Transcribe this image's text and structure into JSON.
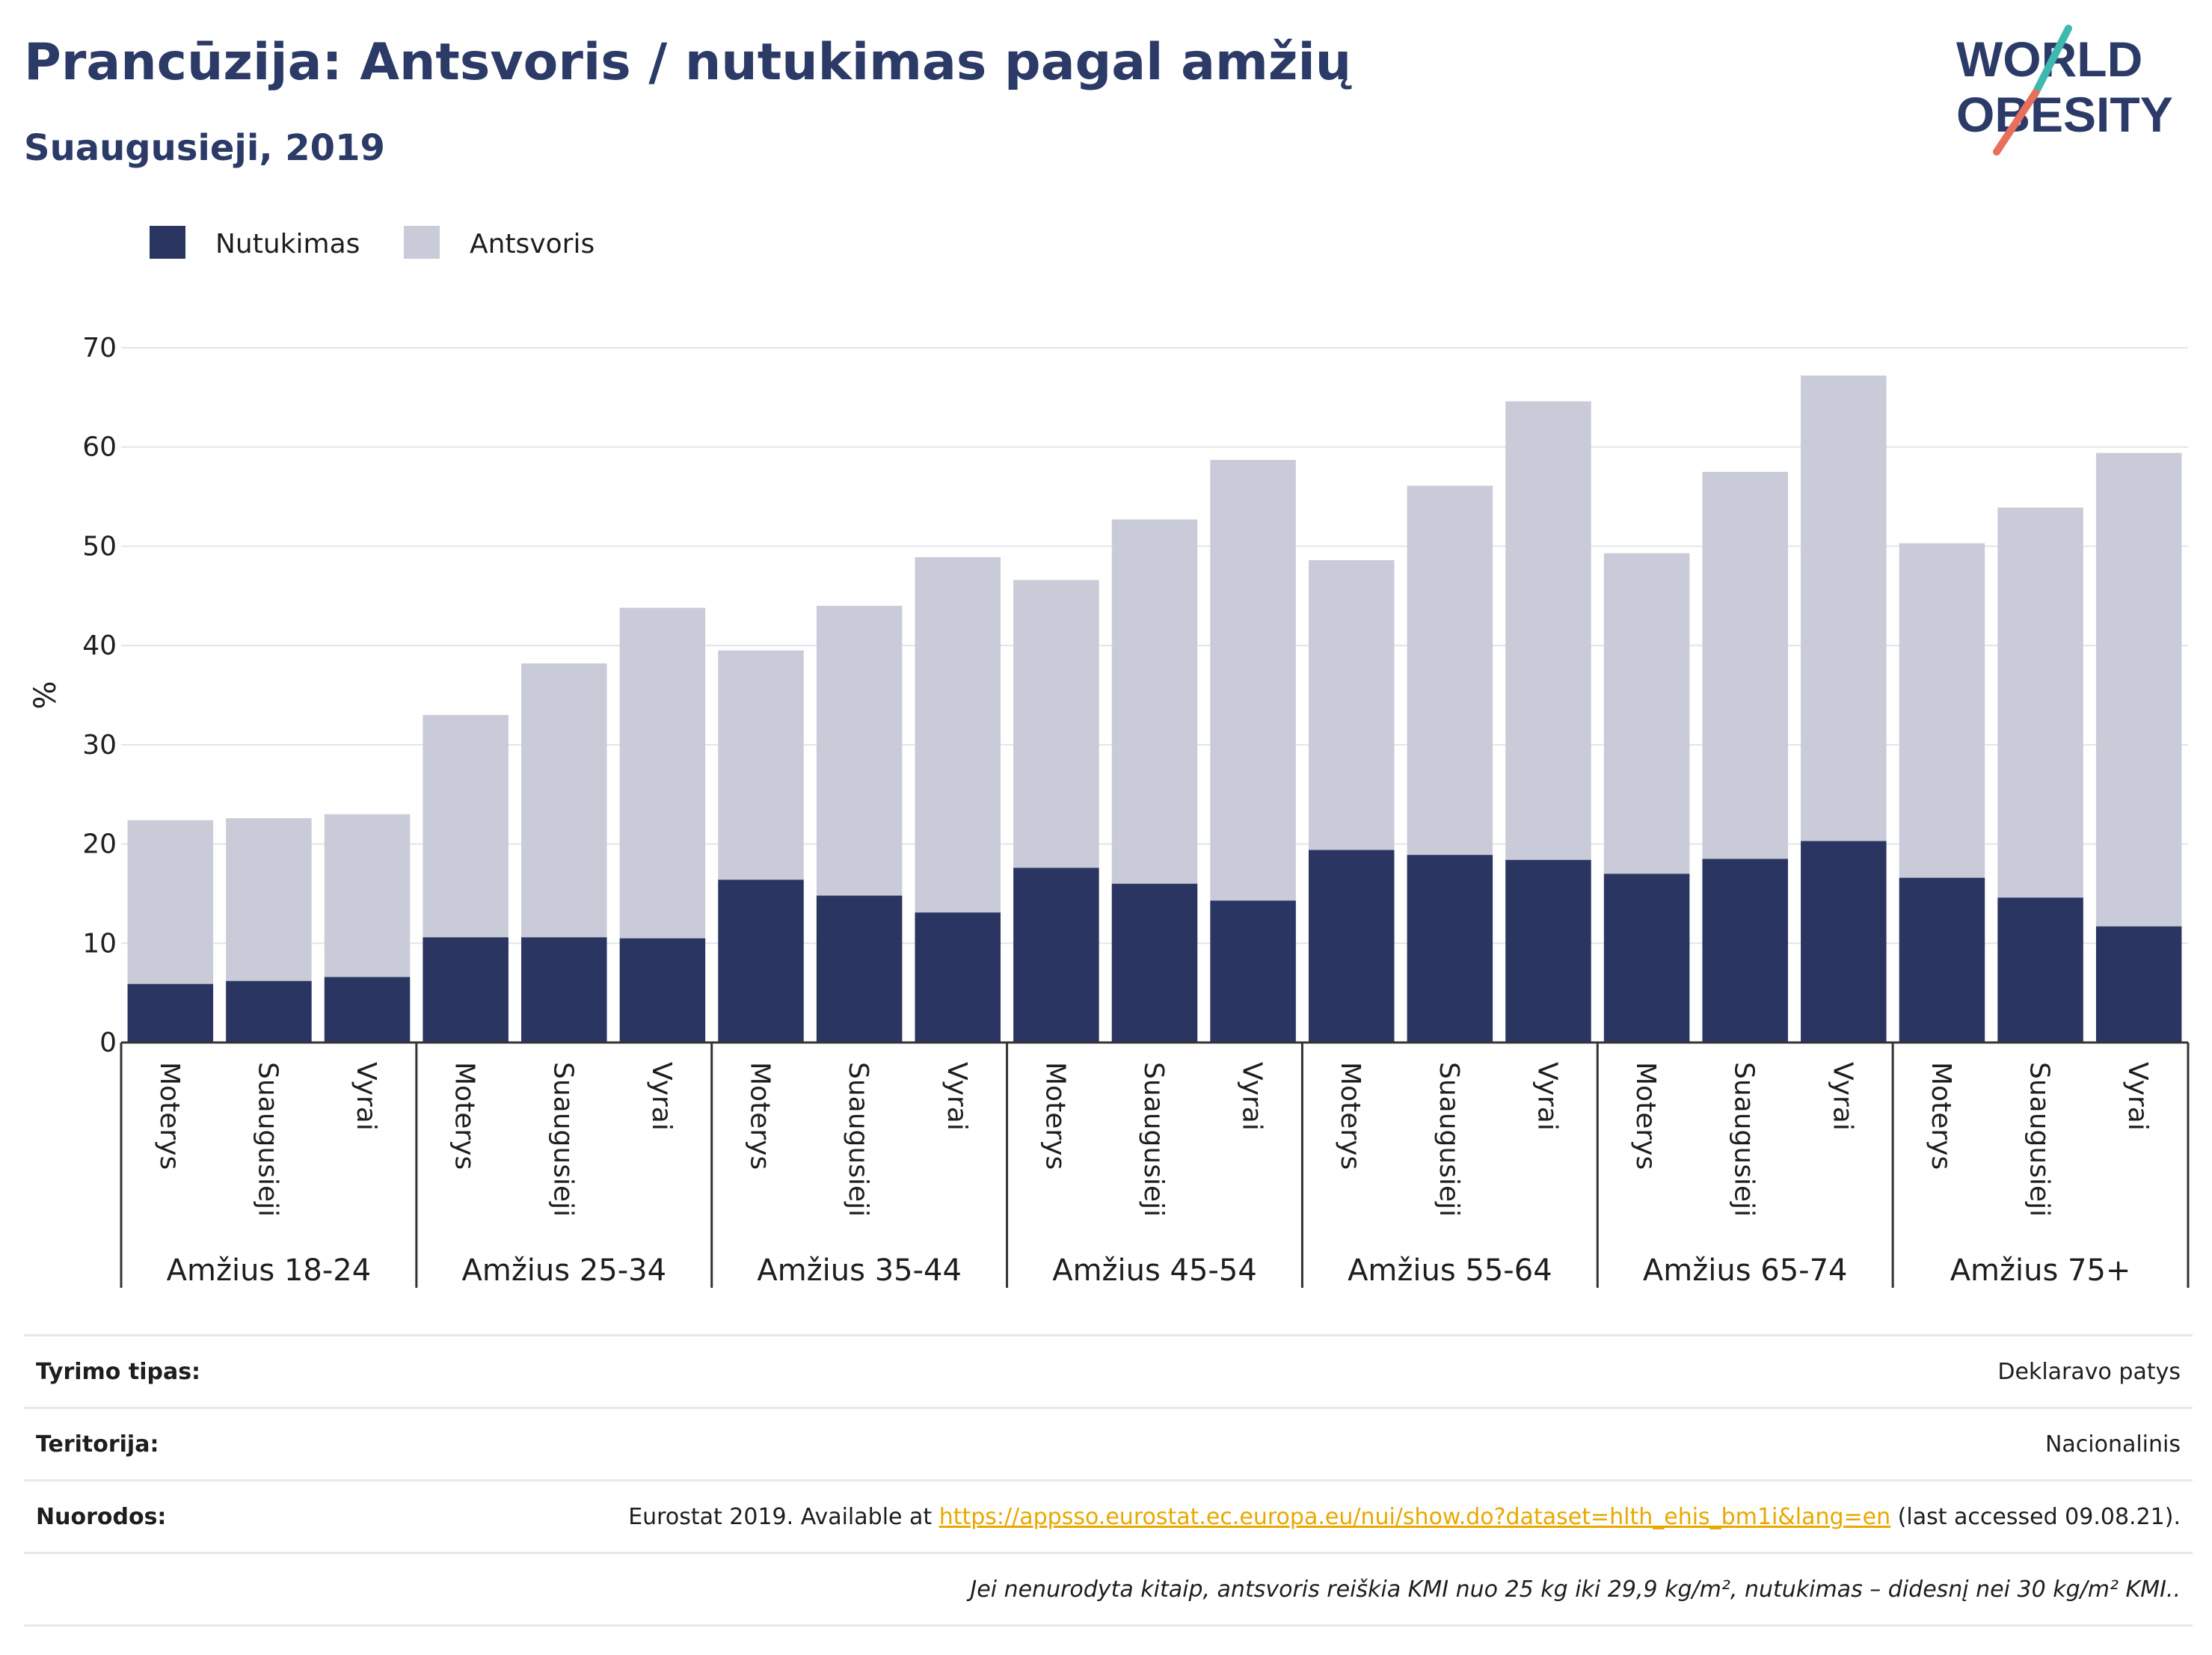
{
  "title": "Prancūzija: Antsvoris / nutukimas pagal amžių",
  "subtitle": "Suaugusieji, 2019",
  "logo": {
    "line1": "WORLD",
    "line2": "OBESITY"
  },
  "colors": {
    "obesity": "#2b3561",
    "overweight": "#c9ccd8",
    "accent_teal": "#3fb8b0",
    "accent_red": "#e86f5b",
    "title": "#2b3a67",
    "link": "#e8a800"
  },
  "chart_data": {
    "type": "bar",
    "stacked": true,
    "ylabel": "%",
    "ylim": [
      0,
      70
    ],
    "yticks": [
      0,
      10,
      20,
      30,
      40,
      50,
      60,
      70
    ],
    "grid": true,
    "legend_position": "top-left",
    "legend": [
      "Nutukimas",
      "Antsvoris"
    ],
    "groups": [
      "Amžius 18-24",
      "Amžius 25-34",
      "Amžius 35-44",
      "Amžius 45-54",
      "Amžius 55-64",
      "Amžius 65-74",
      "Amžius 75+"
    ],
    "subcategories": [
      "Moterys",
      "Suaugusieji",
      "Vyrai"
    ],
    "series": [
      {
        "name": "Nutukimas",
        "values": [
          5.9,
          6.2,
          6.6,
          10.6,
          10.6,
          10.5,
          16.4,
          14.8,
          13.1,
          17.6,
          16.0,
          14.3,
          19.4,
          18.9,
          18.4,
          17.0,
          18.5,
          20.3,
          16.6,
          14.6,
          11.7
        ]
      },
      {
        "name": "Antsvoris",
        "values": [
          16.5,
          16.4,
          16.4,
          22.4,
          27.6,
          33.3,
          23.1,
          29.2,
          35.8,
          29.0,
          36.7,
          44.4,
          29.2,
          37.2,
          46.2,
          32.3,
          39.0,
          46.9,
          33.7,
          39.3,
          47.7
        ]
      }
    ]
  },
  "footer": {
    "survey_label": "Tyrimo tipas:",
    "survey_value": "Deklaravo patys",
    "territory_label": "Teritorija:",
    "territory_value": "Nacionalinis",
    "refs_label": "Nuorodos:",
    "refs_before": "Eurostat 2019. Available at ",
    "refs_link": "https://appsso.eurostat.ec.europa.eu/nui/show.do?dataset=hlth_ehis_bm1i&lang=en",
    "refs_after": " (last accessed 09.08.21).",
    "note": "Jei nenurodyta kitaip, antsvoris reiškia KMI nuo 25 kg iki 29,9 kg/m², nutukimas – didesnį nei 30 kg/m² KMI.."
  }
}
